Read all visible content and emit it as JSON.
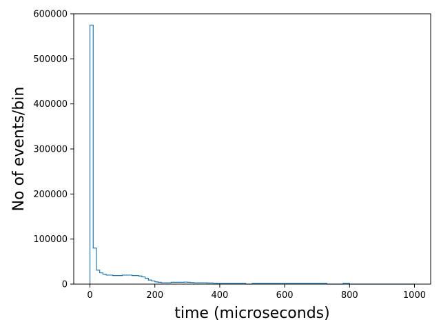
{
  "chart_data": {
    "type": "histogram",
    "xlabel": "time (microseconds)",
    "ylabel": "No of events/bin",
    "xlim": [
      -50,
      1050
    ],
    "ylim": [
      0,
      600000
    ],
    "x_ticks": [
      0,
      200,
      400,
      600,
      800,
      1000
    ],
    "y_ticks": [
      0,
      100000,
      200000,
      300000,
      400000,
      500000,
      600000
    ],
    "x_tick_labels": [
      "0",
      "200",
      "400",
      "600",
      "800",
      "1000"
    ],
    "y_tick_labels": [
      "0",
      "100000",
      "200000",
      "300000",
      "400000",
      "500000",
      "600000"
    ],
    "grid": false,
    "line_color": "#1f77b4",
    "bin_width": 10,
    "bin_start": 0,
    "values": [
      575000,
      80000,
      31000,
      25000,
      22000,
      20000,
      20000,
      19000,
      19000,
      19000,
      20000,
      20000,
      20000,
      19000,
      19000,
      18000,
      16000,
      13000,
      9000,
      7000,
      5000,
      4000,
      3000,
      3000,
      3000,
      4000,
      4000,
      4000,
      4000,
      4500,
      4000,
      3500,
      3000,
      3000,
      3000,
      3000,
      2500,
      2500,
      2000,
      1500,
      1500,
      1500,
      1500,
      1500,
      1500,
      1500,
      1500,
      1500,
      0,
      0,
      1500,
      1500,
      1500,
      1500,
      1500,
      1500,
      1500,
      1500,
      1500,
      1500,
      1500,
      1500,
      1500,
      1500,
      1500,
      1500,
      1500,
      1500,
      1500,
      1500,
      1500,
      1500,
      1500,
      0,
      0,
      0,
      0,
      0,
      1500,
      1500,
      0,
      0,
      0,
      0,
      0,
      0,
      0,
      0,
      0,
      0,
      0,
      0,
      0,
      0,
      0,
      0,
      0,
      0,
      0,
      0
    ]
  }
}
